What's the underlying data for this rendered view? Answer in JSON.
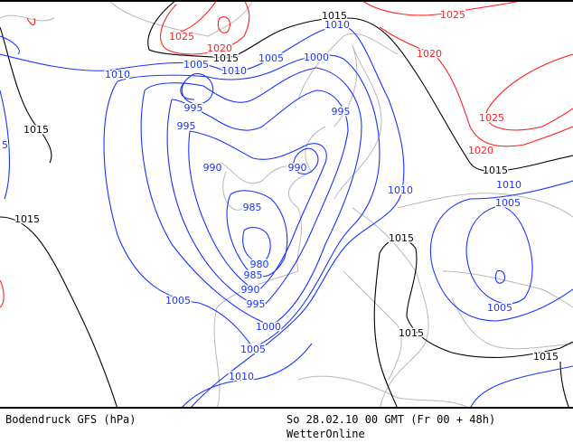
{
  "title": "Bodendruck GFS (hPa)",
  "valid_time": "So 28.02.10 00 GMT (Fr 00 + 48h)",
  "source": "WetterOnline",
  "colors": {
    "low_isobar": "#1a33ff",
    "mid_isobar": "#000000",
    "high_isobar": "#ff2020",
    "coastline": "#b8b8b8"
  },
  "contour_labels": [
    {
      "text": "1015",
      "color": "black"
    },
    {
      "text": "1015",
      "color": "black"
    },
    {
      "text": "1015",
      "color": "black"
    },
    {
      "text": "1015",
      "color": "black"
    },
    {
      "text": "1015",
      "color": "black"
    },
    {
      "text": "1015",
      "color": "black"
    },
    {
      "text": "1015",
      "color": "black"
    },
    {
      "text": "1015",
      "color": "black"
    },
    {
      "text": "1025",
      "color": "red"
    },
    {
      "text": "1020",
      "color": "red"
    },
    {
      "text": "1025",
      "color": "red"
    },
    {
      "text": "1020",
      "color": "red"
    },
    {
      "text": "1025",
      "color": "red"
    },
    {
      "text": "1020",
      "color": "red"
    },
    {
      "text": "1010",
      "color": "blue"
    },
    {
      "text": "1005",
      "color": "blue"
    },
    {
      "text": "1010",
      "color": "blue"
    },
    {
      "text": "1005",
      "color": "blue"
    },
    {
      "text": "1000",
      "color": "blue"
    },
    {
      "text": "1010",
      "color": "blue"
    },
    {
      "text": "995",
      "color": "blue"
    },
    {
      "text": "995",
      "color": "blue"
    },
    {
      "text": "995",
      "color": "blue"
    },
    {
      "text": "990",
      "color": "blue"
    },
    {
      "text": "990",
      "color": "blue"
    },
    {
      "text": "1010",
      "color": "blue"
    },
    {
      "text": "1010",
      "color": "blue"
    },
    {
      "text": "1005",
      "color": "blue"
    },
    {
      "text": "985",
      "color": "blue"
    },
    {
      "text": "980",
      "color": "blue"
    },
    {
      "text": "985",
      "color": "blue"
    },
    {
      "text": "990",
      "color": "blue"
    },
    {
      "text": "995",
      "color": "blue"
    },
    {
      "text": "1005",
      "color": "blue"
    },
    {
      "text": "1000",
      "color": "blue"
    },
    {
      "text": "1005",
      "color": "blue"
    },
    {
      "text": "1005",
      "color": "blue"
    },
    {
      "text": "1010",
      "color": "blue"
    },
    {
      "text": "5",
      "color": "blue"
    }
  ]
}
